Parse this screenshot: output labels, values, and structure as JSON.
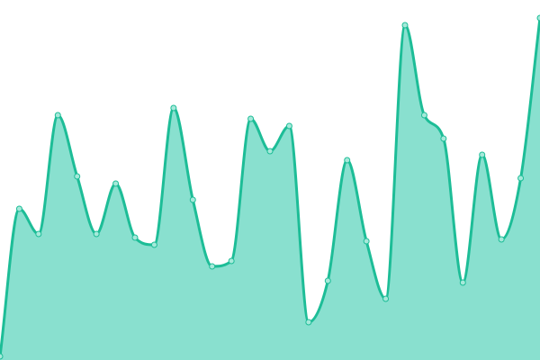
{
  "chart_data": {
    "type": "area",
    "title": "",
    "xlabel": "",
    "ylabel": "",
    "x": [
      0,
      1,
      2,
      3,
      4,
      5,
      6,
      7,
      8,
      9,
      10,
      11,
      12,
      13,
      14,
      15,
      16,
      17,
      18,
      19,
      20,
      21,
      22,
      23,
      24,
      25,
      26,
      27,
      28
    ],
    "series": [
      {
        "values": [
          1,
          42,
          35,
          68,
          51,
          35,
          49,
          34,
          32,
          70,
          44.5,
          26,
          27.5,
          67,
          58,
          65,
          10.5,
          22,
          55.5,
          33,
          17,
          93,
          68,
          61.5,
          21.5,
          57,
          33.5,
          50.5,
          95
        ]
      }
    ],
    "ylim": [
      0,
      100
    ],
    "grid": false,
    "axes_visible": false,
    "curve": "smooth",
    "markers": true,
    "colors": {
      "line": "#1dbd97",
      "fill": "#89e0cf",
      "marker_fill": "#a6e9da"
    }
  }
}
